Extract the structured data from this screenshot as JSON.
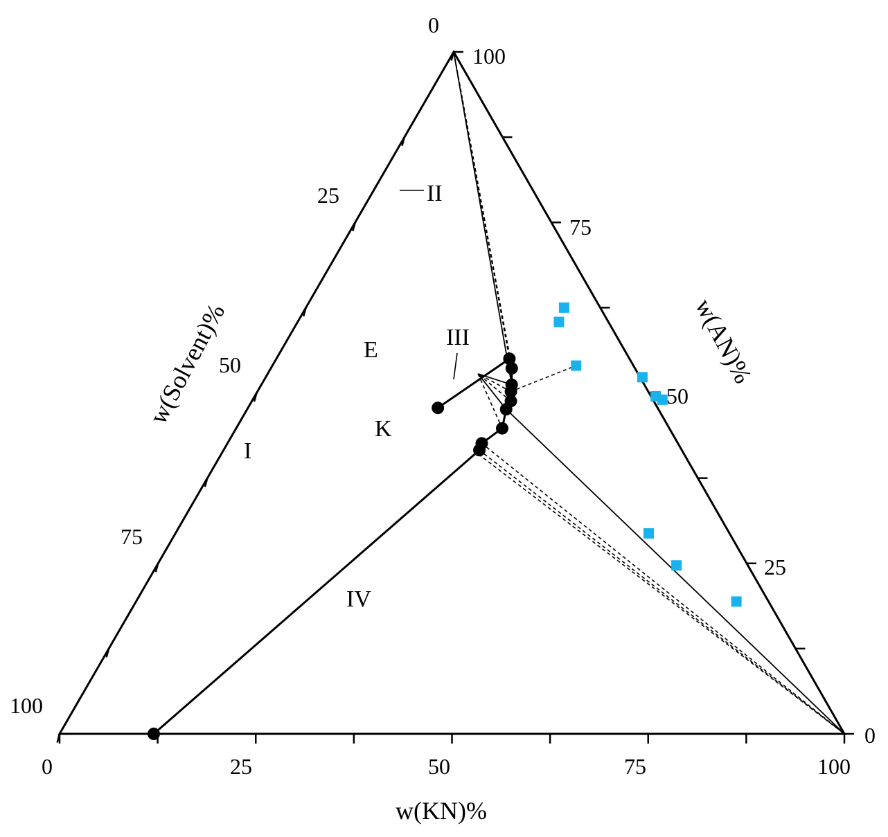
{
  "chart_data": {
    "type": "scatter",
    "subtype": "ternary",
    "axes": {
      "bottom": {
        "label": "w(KN)%",
        "ticks": [
          {
            "value": 0,
            "label": "0"
          },
          {
            "value": 25,
            "label": "25"
          },
          {
            "value": 50,
            "label": "50"
          },
          {
            "value": 75,
            "label": "75"
          },
          {
            "value": 100,
            "label": "100"
          }
        ]
      },
      "left": {
        "label": "w(Solvent)%",
        "ticks": [
          {
            "value": 0,
            "label": "0"
          },
          {
            "value": 25,
            "label": "25"
          },
          {
            "value": 50,
            "label": "50"
          },
          {
            "value": 75,
            "label": "75"
          },
          {
            "value": 100,
            "label": "100"
          }
        ]
      },
      "right": {
        "label": "w(AN)%",
        "ticks": [
          {
            "value": 0,
            "label": "0"
          },
          {
            "value": 25,
            "label": "25"
          },
          {
            "value": 50,
            "label": "50"
          },
          {
            "value": 75,
            "label": "75"
          },
          {
            "value": 100,
            "label": "100"
          }
        ]
      },
      "range": [
        0,
        100
      ],
      "minor_tick_step": 12.5
    },
    "vertices": {
      "top": {
        "KN": 0,
        "AN": 100
      },
      "bottom_left": {
        "KN": 0,
        "AN": 0
      },
      "bottom_right": {
        "KN": 100,
        "AN": 0
      }
    },
    "solubility_points": [
      {
        "KN": 24.2,
        "AN": 47.8
      },
      {
        "KN": 12.0,
        "AN": 0
      },
      {
        "KN": 29.7,
        "AN": 55.0
      },
      {
        "KN": 30.7,
        "AN": 53.6
      },
      {
        "KN": 31.9,
        "AN": 51.2
      },
      {
        "KN": 32.3,
        "AN": 50.2
      },
      {
        "KN": 33.0,
        "AN": 48.8
      },
      {
        "KN": 33.0,
        "AN": 47.6
      },
      {
        "KN": 33.9,
        "AN": 44.8
      },
      {
        "KN": 32.4,
        "AN": 42.6
      },
      {
        "KN": 32.6,
        "AN": 41.6
      }
    ],
    "solubility_curve": [
      {
        "KN": 24.2,
        "AN": 47.8
      },
      {
        "KN": 29.7,
        "AN": 55.0
      },
      {
        "KN": 30.7,
        "AN": 53.6
      },
      {
        "KN": 31.9,
        "AN": 51.2
      },
      {
        "KN": 32.3,
        "AN": 50.2
      },
      {
        "KN": 33.0,
        "AN": 48.8
      },
      {
        "KN": 33.0,
        "AN": 47.6
      },
      {
        "KN": 33.9,
        "AN": 44.8
      },
      {
        "KN": 32.4,
        "AN": 42.6
      },
      {
        "KN": 32.6,
        "AN": 41.6
      },
      {
        "KN": 12.0,
        "AN": 0
      }
    ],
    "boundary_lines": [
      {
        "from": {
          "KN": 0,
          "AN": 100
        },
        "to": {
          "KN": 31.9,
          "AN": 51.2
        }
      },
      {
        "from": {
          "KN": 31.9,
          "AN": 51.2
        },
        "to": {
          "KN": 26.8,
          "AN": 52.8
        }
      },
      {
        "from": {
          "KN": 33.0,
          "AN": 47.6
        },
        "to": {
          "KN": 26.8,
          "AN": 52.8
        }
      },
      {
        "from": {
          "KN": 33.0,
          "AN": 47.6
        },
        "to": {
          "KN": 100,
          "AN": 0
        }
      }
    ],
    "tie_lines": [
      {
        "from": {
          "KN": 0,
          "AN": 100
        },
        "to": {
          "KN": 29.7,
          "AN": 55.0
        }
      },
      {
        "from": {
          "KN": 0,
          "AN": 100
        },
        "to": {
          "KN": 30.2,
          "AN": 54.4
        }
      },
      {
        "from": {
          "KN": 0,
          "AN": 100
        },
        "to": {
          "KN": 30.7,
          "AN": 53.6
        }
      },
      {
        "from": {
          "KN": 32.3,
          "AN": 50.2
        },
        "to": {
          "KN": 26.8,
          "AN": 52.8
        }
      },
      {
        "from": {
          "KN": 33.0,
          "AN": 48.8
        },
        "to": {
          "KN": 26.8,
          "AN": 52.8
        }
      },
      {
        "from": {
          "KN": 33.9,
          "AN": 44.8
        },
        "to": {
          "KN": 26.8,
          "AN": 52.8
        }
      },
      {
        "from": {
          "KN": 32.4,
          "AN": 42.6
        },
        "to": {
          "KN": 100,
          "AN": 0
        }
      },
      {
        "from": {
          "KN": 32.6,
          "AN": 41.6
        },
        "to": {
          "KN": 100,
          "AN": 0
        }
      },
      {
        "from": {
          "KN": 32.8,
          "AN": 41.0
        },
        "to": {
          "KN": 100,
          "AN": 0
        }
      },
      {
        "from": {
          "KN": 32.3,
          "AN": 50.2
        },
        "to": {
          "KN": 38.7,
          "AN": 54.0
        }
      }
    ],
    "experimental_points": [
      {
        "KN": 32.9,
        "AN": 62.5
      },
      {
        "KN": 33.3,
        "AN": 60.4
      },
      {
        "KN": 38.7,
        "AN": 54.0
      },
      {
        "KN": 48.0,
        "AN": 52.3
      },
      {
        "KN": 51.1,
        "AN": 49.5
      },
      {
        "KN": 52.2,
        "AN": 49.0
      },
      {
        "KN": 60.3,
        "AN": 29.4
      },
      {
        "KN": 66.2,
        "AN": 24.7
      },
      {
        "KN": 76.5,
        "AN": 19.4
      }
    ],
    "annotations": [
      {
        "text": "0",
        "target": "apex-solvent-zero"
      },
      {
        "text": "II",
        "leader": true
      },
      {
        "text": "III",
        "leader": true
      },
      {
        "text": "E",
        "leader": true
      },
      {
        "text": "K"
      },
      {
        "text": "I"
      },
      {
        "text": "IV"
      }
    ],
    "colors": {
      "frame": "#000000",
      "point_black": "#000000",
      "point_blue": "#1ab2ec",
      "tie_line": "#000000"
    }
  }
}
